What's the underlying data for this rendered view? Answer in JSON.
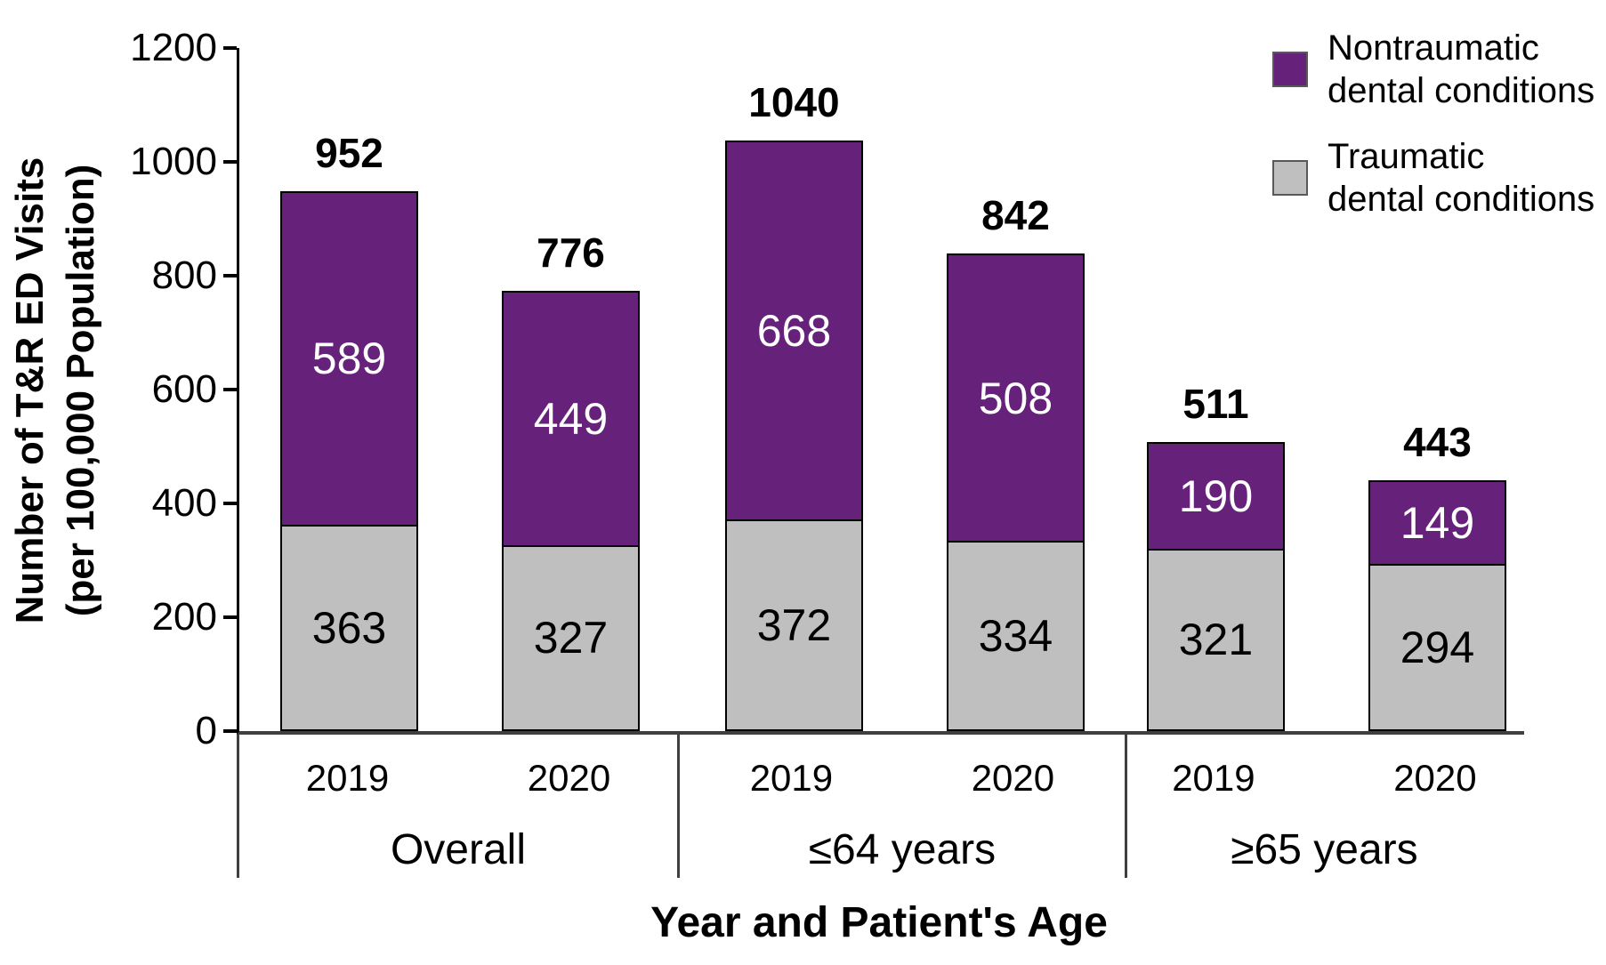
{
  "chart_data": {
    "type": "bar",
    "stacked": true,
    "xlabel": "Year and Patient's Age",
    "ylabel": "Number of T&R ED Visits (per 100,000 Population)",
    "ylabel_line1": "Number of T&R ED Visits",
    "ylabel_line2": "(per 100,000 Population)",
    "ylim": [
      0,
      1200
    ],
    "yticks": [
      0,
      200,
      400,
      600,
      800,
      1000,
      1200
    ],
    "grid": false,
    "legend_position": "top-right",
    "colors": {
      "nontraumatic": "#66217A",
      "traumatic": "#BFBFBF"
    },
    "legend": [
      {
        "line1": "Nontraumatic",
        "line2": "dental conditions",
        "color": "#66217A"
      },
      {
        "line1": "Traumatic",
        "line2": "dental conditions",
        "color": "#BFBFBF"
      }
    ],
    "series_names": [
      "Nontraumatic dental conditions",
      "Traumatic dental conditions"
    ],
    "groups": [
      {
        "label": "Overall",
        "bars": [
          {
            "year": "2019",
            "traumatic": 363,
            "nontraumatic": 589,
            "total": 952
          },
          {
            "year": "2020",
            "traumatic": 327,
            "nontraumatic": 449,
            "total": 776
          }
        ]
      },
      {
        "label": "≤64 years",
        "bars": [
          {
            "year": "2019",
            "traumatic": 372,
            "nontraumatic": 668,
            "total": 1040
          },
          {
            "year": "2020",
            "traumatic": 334,
            "nontraumatic": 508,
            "total": 842
          }
        ]
      },
      {
        "label": "≥65 years",
        "bars": [
          {
            "year": "2019",
            "traumatic": 321,
            "nontraumatic": 190,
            "total": 511
          },
          {
            "year": "2020",
            "traumatic": 294,
            "nontraumatic": 149,
            "total": 443
          }
        ]
      }
    ]
  }
}
